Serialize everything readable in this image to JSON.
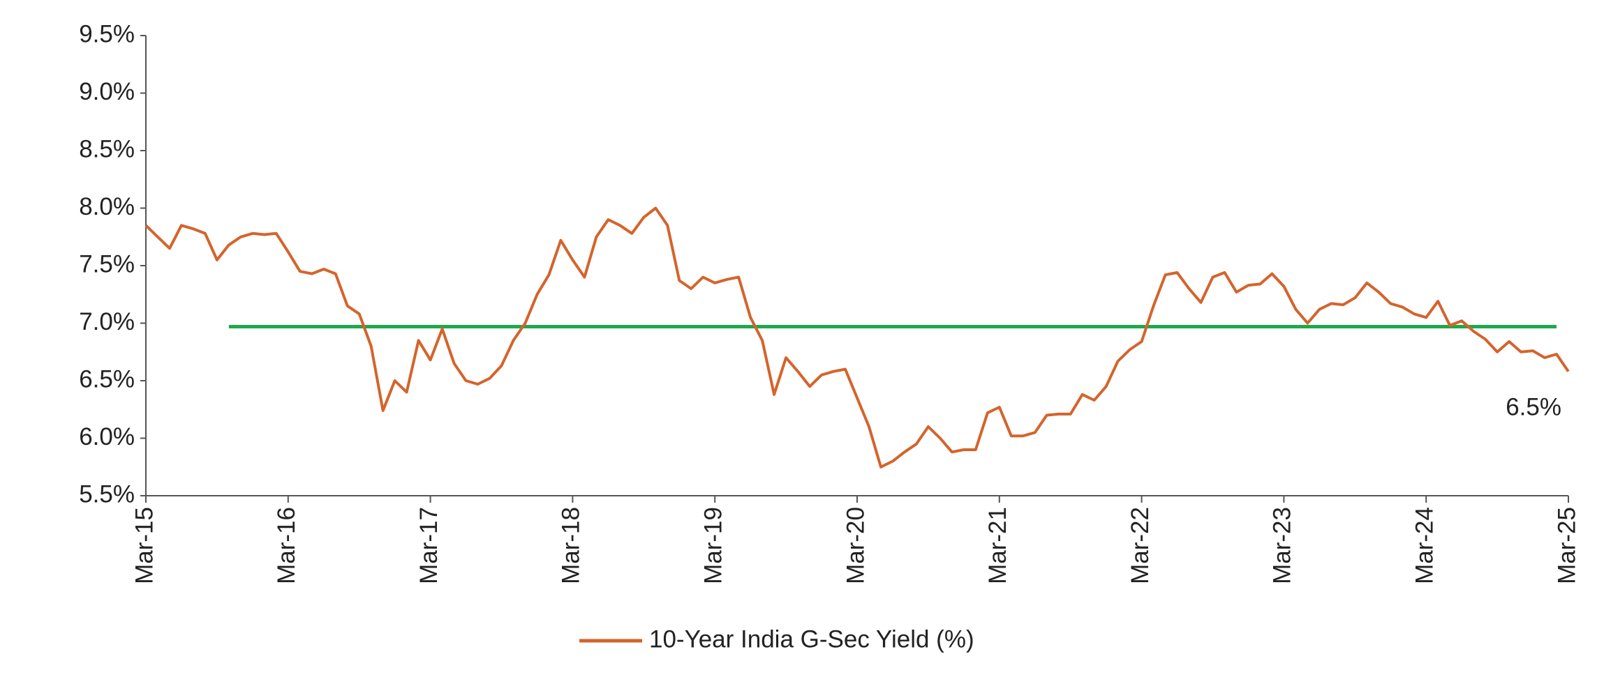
{
  "chart_data": {
    "type": "line",
    "categories": [
      "Mar-15",
      null,
      null,
      null,
      null,
      null,
      null,
      null,
      null,
      null,
      null,
      null,
      "Mar-16",
      null,
      null,
      null,
      null,
      null,
      null,
      null,
      null,
      null,
      null,
      null,
      "Mar-17",
      null,
      null,
      null,
      null,
      null,
      null,
      null,
      null,
      null,
      null,
      null,
      "Mar-18",
      null,
      null,
      null,
      null,
      null,
      null,
      null,
      null,
      null,
      null,
      null,
      "Mar-19",
      null,
      null,
      null,
      null,
      null,
      null,
      null,
      null,
      null,
      null,
      null,
      "Mar-20",
      null,
      null,
      null,
      null,
      null,
      null,
      null,
      null,
      null,
      null,
      null,
      "Mar-21",
      null,
      null,
      null,
      null,
      null,
      null,
      null,
      null,
      null,
      null,
      null,
      "Mar-22",
      null,
      null,
      null,
      null,
      null,
      null,
      null,
      null,
      null,
      null,
      null,
      "Mar-23",
      null,
      null,
      null,
      null,
      null,
      null,
      null,
      null,
      null,
      null,
      null,
      "Mar-24",
      null,
      null,
      null,
      null,
      null,
      null,
      null,
      null,
      null,
      null,
      null,
      "Mar-25"
    ],
    "series": [
      {
        "name": "10-Year India G-Sec Yield (%)",
        "color": "#d4642c",
        "values": [
          7.85,
          7.75,
          7.65,
          7.85,
          7.82,
          7.78,
          7.55,
          7.68,
          7.75,
          7.78,
          7.77,
          7.78,
          7.62,
          7.45,
          7.43,
          7.47,
          7.43,
          7.15,
          7.08,
          6.8,
          6.24,
          6.5,
          6.4,
          6.85,
          6.68,
          6.95,
          6.65,
          6.5,
          6.47,
          6.52,
          6.63,
          6.85,
          7.0,
          7.25,
          7.42,
          7.72,
          7.55,
          7.4,
          7.75,
          7.9,
          7.85,
          7.78,
          7.92,
          8.0,
          7.85,
          7.37,
          7.3,
          7.4,
          7.35,
          7.38,
          7.4,
          7.05,
          6.85,
          6.38,
          6.7,
          6.58,
          6.45,
          6.55,
          6.58,
          6.6,
          6.35,
          6.1,
          5.75,
          5.8,
          5.88,
          5.95,
          6.1,
          6.0,
          5.88,
          5.9,
          5.9,
          6.22,
          6.27,
          6.02,
          6.02,
          6.05,
          6.2,
          6.21,
          6.21,
          6.38,
          6.33,
          6.45,
          6.67,
          6.77,
          6.84,
          7.15,
          7.42,
          7.44,
          7.3,
          7.18,
          7.4,
          7.44,
          7.27,
          7.33,
          7.34,
          7.43,
          7.32,
          7.12,
          7.0,
          7.12,
          7.17,
          7.16,
          7.22,
          7.35,
          7.27,
          7.17,
          7.14,
          7.08,
          7.05,
          7.19,
          6.98,
          7.02,
          6.93,
          6.86,
          6.75,
          6.84,
          6.75,
          6.76,
          6.7,
          6.73,
          6.58
        ]
      },
      {
        "color": "#1fa84a",
        "values": [
          null,
          null,
          null,
          null,
          null,
          null,
          null,
          6.97,
          6.97,
          6.97,
          6.97,
          6.97,
          6.97,
          6.97,
          6.97,
          6.97,
          6.97,
          6.97,
          6.97,
          6.97,
          6.97,
          6.97,
          6.97,
          6.97,
          6.97,
          6.97,
          6.97,
          6.97,
          6.97,
          6.97,
          6.97,
          6.97,
          6.97,
          6.97,
          6.97,
          6.97,
          6.97,
          6.97,
          6.97,
          6.97,
          6.97,
          6.97,
          6.97,
          6.97,
          6.97,
          6.97,
          6.97,
          6.97,
          6.97,
          6.97,
          6.97,
          6.97,
          6.97,
          6.97,
          6.97,
          6.97,
          6.97,
          6.97,
          6.97,
          6.97,
          6.97,
          6.97,
          6.97,
          6.97,
          6.97,
          6.97,
          6.97,
          6.97,
          6.97,
          6.97,
          6.97,
          6.97,
          6.97,
          6.97,
          6.97,
          6.97,
          6.97,
          6.97,
          6.97,
          6.97,
          6.97,
          6.97,
          6.97,
          6.97,
          6.97,
          6.97,
          6.97,
          6.97,
          6.97,
          6.97,
          6.97,
          6.97,
          6.97,
          6.97,
          6.97,
          6.97,
          6.97,
          6.97,
          6.97,
          6.97,
          6.97,
          6.97,
          6.97,
          6.97,
          6.97,
          6.97,
          6.97,
          6.97,
          6.97,
          6.97,
          6.97,
          6.97,
          6.97,
          6.97,
          6.97,
          6.97,
          6.97,
          6.97,
          6.97,
          6.97,
          null
        ]
      }
    ],
    "annotations": [
      "6.5%"
    ],
    "ylim": [
      5.5,
      9.5
    ],
    "yticks": [
      {
        "value": 5.5,
        "label": "5.5%"
      },
      {
        "value": 6.0,
        "label": "6.0%"
      },
      {
        "value": 6.5,
        "label": "6.5%"
      },
      {
        "value": 7.0,
        "label": "7.0%"
      },
      {
        "value": 7.5,
        "label": "7.5%"
      },
      {
        "value": 8.0,
        "label": "8.0%"
      },
      {
        "value": 8.5,
        "label": "8.5%"
      },
      {
        "value": 9.0,
        "label": "9.0%"
      },
      {
        "value": 9.5,
        "label": "9.5%"
      }
    ],
    "grid": false,
    "legend": "bottom"
  }
}
